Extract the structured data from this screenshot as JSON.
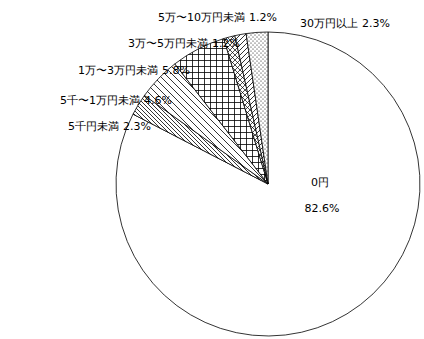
{
  "chart_data": {
    "type": "pie",
    "categories": [
      "0円",
      "5千円未満",
      "5千〜1万円未満",
      "1万〜3万円未満",
      "3万〜5万円未満",
      "5万〜10万円未満",
      "30万円以上"
    ],
    "values": [
      82.6,
      2.3,
      4.6,
      5.8,
      1.2,
      1.2,
      2.3
    ],
    "value_labels": [
      "82.6%",
      "2.3%",
      "4.6%",
      "5.8%",
      "1.2%",
      "1.2%",
      "2.3%"
    ],
    "data_labels": true
  }
}
